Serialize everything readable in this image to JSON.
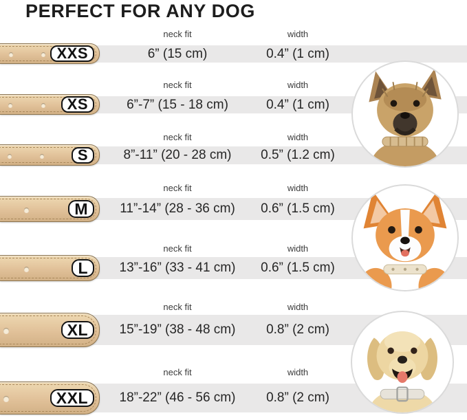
{
  "title": "PERFECT FOR ANY DOG",
  "columns": {
    "neck_fit": "neck fit",
    "width": "width"
  },
  "rows": [
    {
      "size": "XXS",
      "neck_fit": "6” (15 cm)",
      "width": "0.4” (1 cm)",
      "holes": 2
    },
    {
      "size": "XS",
      "neck_fit": "6”-7” (15 - 18 cm)",
      "width": "0.4” (1 cm)",
      "holes": 2
    },
    {
      "size": "S",
      "neck_fit": "8”-11” (20 - 28 cm)",
      "width": "0.5” (1.2 cm)",
      "holes": 2
    },
    {
      "size": "M",
      "neck_fit": "11”-14” (28 - 36 cm)",
      "width": "0.6” (1.5 cm)",
      "holes": 1
    },
    {
      "size": "L",
      "neck_fit": "13”-16” (33 - 41 cm)",
      "width": "0.6” (1.5 cm)",
      "holes": 1
    },
    {
      "size": "XL",
      "neck_fit": "15”-19” (38 - 48 cm)",
      "width": "0.8” (2 cm)",
      "holes": 1
    },
    {
      "size": "XXL",
      "neck_fit": "18”-22” (46 - 56 cm)",
      "width": "0.8” (2 cm)",
      "holes": 1
    }
  ],
  "dogs": [
    {
      "name": "terrier-photo"
    },
    {
      "name": "corgi-photo"
    },
    {
      "name": "labrador-photo"
    }
  ],
  "colors": {
    "strap_tan": "#e1c199",
    "band_gray": "#e9e8e8",
    "pill_border": "#141414",
    "title_text": "#1d1d1d"
  },
  "chart_data": {
    "type": "table",
    "title": "PERFECT FOR ANY DOG",
    "columns": [
      "size",
      "neck fit",
      "width"
    ],
    "rows": [
      [
        "XXS",
        "6” (15 cm)",
        "0.4” (1 cm)"
      ],
      [
        "XS",
        "6”-7” (15 - 18 cm)",
        "0.4” (1 cm)"
      ],
      [
        "S",
        "8”-11” (20 - 28 cm)",
        "0.5” (1.2 cm)"
      ],
      [
        "M",
        "11”-14” (28 - 36 cm)",
        "0.6” (1.5 cm)"
      ],
      [
        "L",
        "13”-16” (33 - 41 cm)",
        "0.6” (1.5 cm)"
      ],
      [
        "XL",
        "15”-19” (38 - 48 cm)",
        "0.8” (2 cm)"
      ],
      [
        "XXL",
        "18”-22” (46 - 56 cm)",
        "0.8” (2 cm)"
      ]
    ]
  }
}
